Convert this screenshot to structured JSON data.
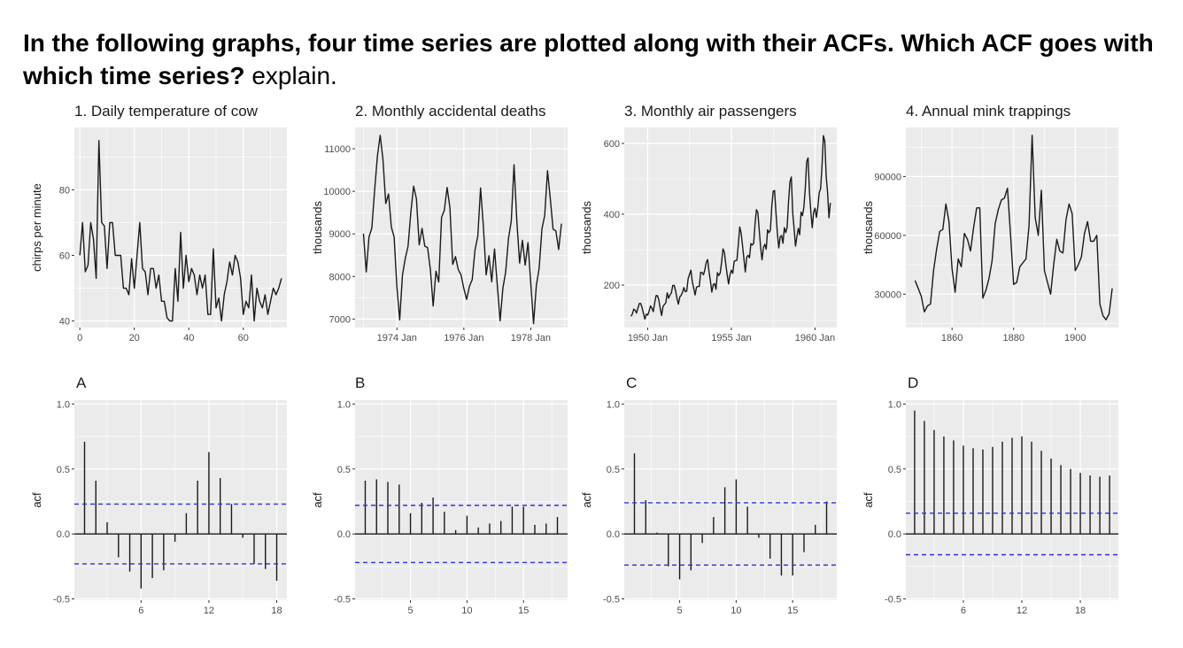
{
  "question": {
    "bold": "In the following graphs, four time series are plotted along with their ACFs. Which ACF goes with which time series?",
    "plain": "explain."
  },
  "colors": {
    "panel": "#ebebeb",
    "grid": "#ffffff",
    "line": "#1a1a1a",
    "ci": "#3333dd"
  },
  "chart_data": [
    {
      "type": "line",
      "title": "1. Daily temperature of cow",
      "ylabel": "chirps per minute",
      "xlim": [
        -2,
        76
      ],
      "ylim": [
        38,
        99
      ],
      "xticks": [
        {
          "v": 0,
          "label": "0"
        },
        {
          "v": 20,
          "label": "20"
        },
        {
          "v": 40,
          "label": "40"
        },
        {
          "v": 60,
          "label": "60"
        }
      ],
      "yticks": [
        {
          "v": 40,
          "label": "40"
        },
        {
          "v": 60,
          "label": "60"
        },
        {
          "v": 80,
          "label": "80"
        }
      ],
      "values": [
        60,
        70,
        55,
        57,
        70,
        65,
        53,
        95,
        70,
        69,
        56,
        70,
        70,
        60,
        60,
        60,
        50,
        50,
        48,
        59,
        50,
        60,
        70,
        56,
        55,
        48,
        56,
        56,
        50,
        54,
        46,
        46,
        41,
        40,
        40,
        56,
        46,
        67,
        50,
        60,
        52,
        56,
        54,
        48,
        54,
        50,
        54,
        42,
        42,
        62,
        44,
        47,
        40,
        48,
        52,
        58,
        54,
        60,
        58,
        53,
        42,
        46,
        44,
        54,
        40,
        50,
        46,
        44,
        48,
        42,
        46,
        50,
        48,
        50,
        53
      ]
    },
    {
      "type": "line",
      "title": "2. Monthly accidental deaths",
      "ylabel": "thousands",
      "xlim": [
        1972.75,
        1979.1
      ],
      "ylim": [
        6800,
        11500
      ],
      "xticks": [
        {
          "v": 1974,
          "label": "1974 Jan"
        },
        {
          "v": 1976,
          "label": "1976 Jan"
        },
        {
          "v": 1978,
          "label": "1978 Jan"
        }
      ],
      "yticks": [
        {
          "v": 7000,
          "label": "7000"
        },
        {
          "v": 8000,
          "label": "8000"
        },
        {
          "v": 9000,
          "label": "9000"
        },
        {
          "v": 10000,
          "label": "10000"
        },
        {
          "v": 11000,
          "label": "11000"
        }
      ],
      "x_start": 1973,
      "step": 0.0833333,
      "values": [
        9007,
        8106,
        8928,
        9137,
        10017,
        10826,
        11317,
        10744,
        9713,
        9938,
        9161,
        8927,
        7750,
        6981,
        8038,
        8422,
        8714,
        9512,
        10120,
        9823,
        8743,
        9129,
        8710,
        8680,
        8162,
        7306,
        8124,
        7870,
        9387,
        9556,
        10093,
        9620,
        8285,
        8466,
        8160,
        8034,
        7717,
        7461,
        7767,
        7925,
        8623,
        8945,
        10078,
        9179,
        8037,
        8488,
        7874,
        8647,
        7792,
        6957,
        7726,
        8106,
        8890,
        9299,
        10625,
        9302,
        8314,
        8850,
        8265,
        8796,
        7836,
        6892,
        7791,
        8192,
        9115,
        9434,
        10484,
        9827,
        9110,
        9070,
        8633,
        9240
      ]
    },
    {
      "type": "line",
      "title": "3. Monthly air passengers",
      "ylabel": "thousands",
      "xlim": [
        1948.6,
        1961.3
      ],
      "ylim": [
        80,
        645
      ],
      "xticks": [
        {
          "v": 1950,
          "label": "1950 Jan"
        },
        {
          "v": 1955,
          "label": "1955 Jan"
        },
        {
          "v": 1960,
          "label": "1960 Jan"
        }
      ],
      "yticks": [
        {
          "v": 200,
          "label": "200"
        },
        {
          "v": 400,
          "label": "400"
        },
        {
          "v": 600,
          "label": "600"
        }
      ],
      "x_start": 1949,
      "step": 0.0833333,
      "values": [
        112,
        118,
        132,
        129,
        121,
        135,
        148,
        148,
        136,
        119,
        104,
        118,
        115,
        126,
        141,
        135,
        125,
        149,
        170,
        170,
        158,
        133,
        114,
        140,
        145,
        150,
        178,
        163,
        172,
        178,
        199,
        199,
        184,
        162,
        146,
        166,
        171,
        180,
        193,
        181,
        183,
        218,
        230,
        242,
        209,
        191,
        172,
        194,
        196,
        196,
        236,
        235,
        229,
        243,
        264,
        272,
        237,
        211,
        180,
        201,
        204,
        188,
        235,
        227,
        234,
        264,
        302,
        293,
        259,
        229,
        203,
        229,
        242,
        233,
        267,
        269,
        270,
        315,
        364,
        347,
        312,
        274,
        237,
        278,
        284,
        277,
        317,
        313,
        318,
        374,
        413,
        405,
        355,
        306,
        271,
        306,
        315,
        301,
        356,
        348,
        355,
        422,
        465,
        467,
        404,
        347,
        305,
        336,
        340,
        318,
        362,
        348,
        363,
        435,
        491,
        505,
        404,
        359,
        310,
        337,
        360,
        342,
        406,
        396,
        420,
        472,
        548,
        559,
        463,
        407,
        362,
        405,
        417,
        391,
        419,
        461,
        472,
        535,
        622,
        606,
        508,
        461,
        390,
        432
      ]
    },
    {
      "type": "line",
      "title": "4. Annual mink trappings",
      "ylabel": "thousands",
      "xlim": [
        1845,
        1914
      ],
      "ylim": [
        13000,
        115000
      ],
      "xticks": [
        {
          "v": 1860,
          "label": "1860"
        },
        {
          "v": 1880,
          "label": "1880"
        },
        {
          "v": 1900,
          "label": "1900"
        }
      ],
      "yticks": [
        {
          "v": 30000,
          "label": "30000"
        },
        {
          "v": 60000,
          "label": "60000"
        },
        {
          "v": 90000,
          "label": "90000"
        }
      ],
      "x_start": 1848,
      "step": 1,
      "values": [
        37000,
        33000,
        29000,
        21000,
        24000,
        25000,
        42000,
        53000,
        62000,
        63000,
        76000,
        67000,
        43000,
        31000,
        48000,
        44000,
        61000,
        58000,
        52000,
        64000,
        74000,
        74000,
        28000,
        32000,
        38000,
        47000,
        66000,
        73000,
        78000,
        79000,
        84000,
        60000,
        35000,
        36000,
        44000,
        46000,
        48000,
        65000,
        111000,
        69000,
        60000,
        83000,
        42000,
        36000,
        30000,
        45000,
        58000,
        52000,
        51000,
        68000,
        76000,
        71000,
        42000,
        45000,
        49000,
        61000,
        67000,
        57000,
        57000,
        60000,
        25000,
        19000,
        17000,
        20000,
        33000
      ]
    },
    {
      "type": "bar",
      "title": "A",
      "ylabel": "acf",
      "xlim": [
        0.1,
        18.9
      ],
      "ylim": [
        -0.51,
        1.03
      ],
      "xticks": [
        {
          "v": 6,
          "label": "6"
        },
        {
          "v": 12,
          "label": "12"
        },
        {
          "v": 18,
          "label": "18"
        }
      ],
      "yticks": [
        {
          "v": -0.5,
          "label": "-0.5"
        },
        {
          "v": 0,
          "label": "0.0"
        },
        {
          "v": 0.5,
          "label": "0.5"
        },
        {
          "v": 1,
          "label": "1.0"
        }
      ],
      "ci": 0.23,
      "values": [
        0.71,
        0.41,
        0.09,
        -0.18,
        -0.29,
        -0.42,
        -0.34,
        -0.28,
        -0.06,
        0.16,
        0.41,
        0.63,
        0.43,
        0.23,
        -0.03,
        -0.23,
        -0.27,
        -0.36
      ]
    },
    {
      "type": "bar",
      "title": "B",
      "ylabel": "acf",
      "xlim": [
        0.1,
        18.9
      ],
      "ylim": [
        -0.51,
        1.03
      ],
      "xticks": [
        {
          "v": 5,
          "label": "5"
        },
        {
          "v": 10,
          "label": "10"
        },
        {
          "v": 15,
          "label": "15"
        }
      ],
      "yticks": [
        {
          "v": -0.5,
          "label": "-0.5"
        },
        {
          "v": 0,
          "label": "0.0"
        },
        {
          "v": 0.5,
          "label": "0.5"
        },
        {
          "v": 1,
          "label": "1.0"
        }
      ],
      "ci": 0.22,
      "values": [
        0.41,
        0.42,
        0.4,
        0.38,
        0.16,
        0.24,
        0.28,
        0.17,
        0.03,
        0.14,
        0.05,
        0.08,
        0.1,
        0.21,
        0.21,
        0.07,
        0.08,
        0.13
      ]
    },
    {
      "type": "bar",
      "title": "C",
      "ylabel": "acf",
      "xlim": [
        0.1,
        18.9
      ],
      "ylim": [
        -0.51,
        1.03
      ],
      "xticks": [
        {
          "v": 5,
          "label": "5"
        },
        {
          "v": 10,
          "label": "10"
        },
        {
          "v": 15,
          "label": "15"
        }
      ],
      "yticks": [
        {
          "v": -0.5,
          "label": "-0.5"
        },
        {
          "v": 0,
          "label": "0.0"
        },
        {
          "v": 0.5,
          "label": "0.5"
        },
        {
          "v": 1,
          "label": "1.0"
        }
      ],
      "ci": 0.24,
      "values": [
        0.62,
        0.26,
        0.01,
        -0.25,
        -0.35,
        -0.28,
        -0.07,
        0.13,
        0.36,
        0.42,
        0.21,
        -0.03,
        -0.19,
        -0.32,
        -0.32,
        -0.14,
        0.07,
        0.25
      ]
    },
    {
      "type": "bar",
      "title": "D",
      "ylabel": "acf",
      "xlim": [
        0.1,
        21.9
      ],
      "ylim": [
        -0.51,
        1.03
      ],
      "xticks": [
        {
          "v": 6,
          "label": "6"
        },
        {
          "v": 12,
          "label": "12"
        },
        {
          "v": 18,
          "label": "18"
        }
      ],
      "yticks": [
        {
          "v": -0.5,
          "label": "-0.5"
        },
        {
          "v": 0,
          "label": "0.0"
        },
        {
          "v": 0.5,
          "label": "0.5"
        },
        {
          "v": 1,
          "label": "1.0"
        }
      ],
      "ci": 0.16,
      "values": [
        0.95,
        0.87,
        0.8,
        0.75,
        0.72,
        0.68,
        0.66,
        0.65,
        0.67,
        0.71,
        0.74,
        0.75,
        0.71,
        0.64,
        0.58,
        0.53,
        0.5,
        0.47,
        0.45,
        0.44,
        0.45
      ]
    }
  ]
}
